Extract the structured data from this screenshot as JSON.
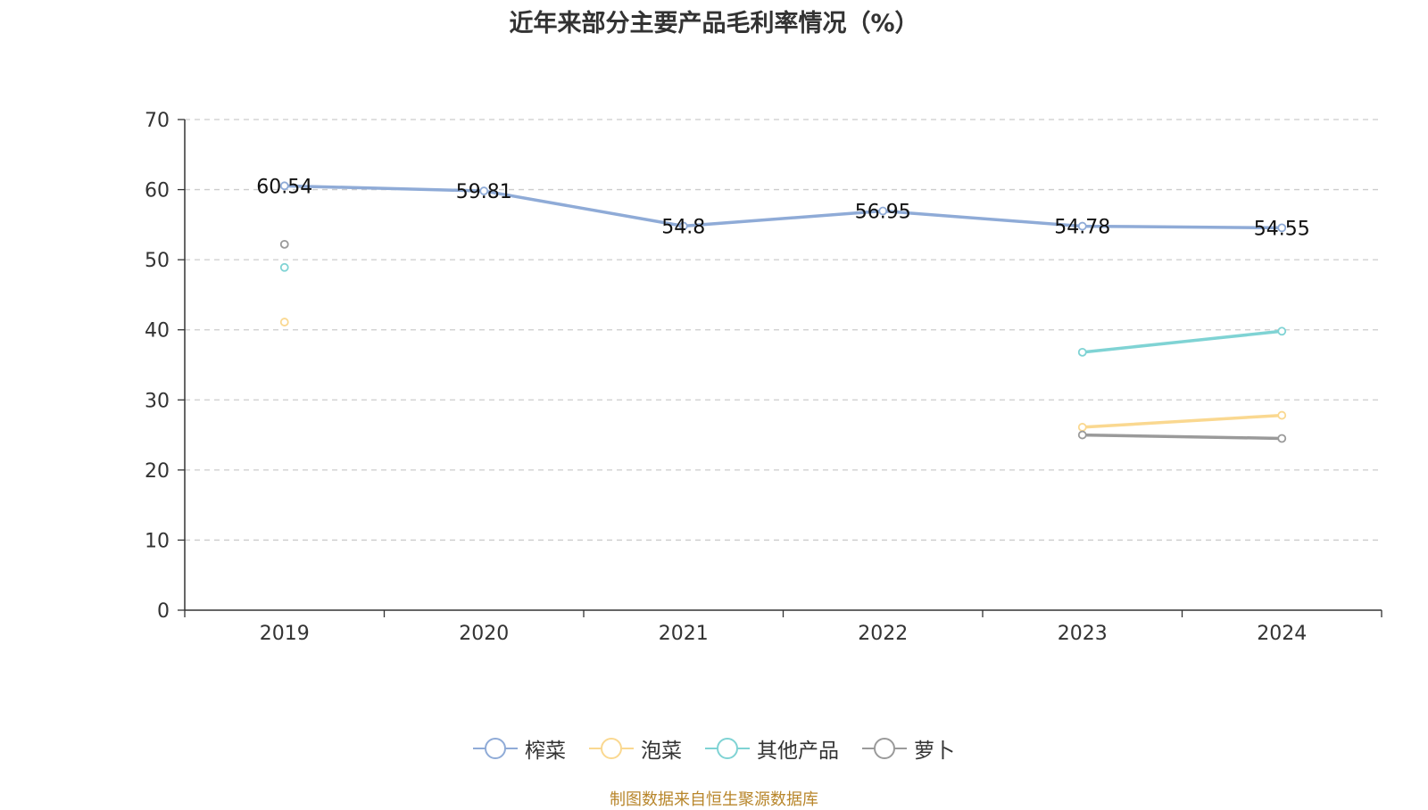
{
  "chart_data": {
    "type": "line",
    "title": "近年来部分主要产品毛利率情况（%）",
    "x": [
      "2019",
      "2020",
      "2021",
      "2022",
      "2023",
      "2024"
    ],
    "ylim": [
      0,
      70
    ],
    "yticks": [
      "0",
      "10",
      "20",
      "30",
      "40",
      "50",
      "60",
      "70"
    ],
    "grid": true,
    "legend_position": "bottom",
    "series": [
      {
        "name": "榨菜",
        "color": "#8fabd7",
        "values": [
          60.54,
          59.81,
          54.8,
          56.95,
          54.78,
          54.55
        ],
        "labels": [
          "60.54",
          "59.81",
          "54.8",
          "56.95",
          "54.78",
          "54.55"
        ]
      },
      {
        "name": "泡菜",
        "color": "#fad890",
        "values": [
          41.1,
          null,
          null,
          null,
          26.1,
          27.8
        ]
      },
      {
        "name": "其他产品",
        "color": "#7fd3d4",
        "values": [
          48.9,
          null,
          null,
          null,
          36.8,
          39.8
        ]
      },
      {
        "name": "萝卜",
        "color": "#9a9a9a",
        "values": [
          52.2,
          null,
          null,
          null,
          25.0,
          24.5
        ]
      }
    ]
  },
  "footer": {
    "source": "制图数据来自恒生聚源数据库"
  }
}
